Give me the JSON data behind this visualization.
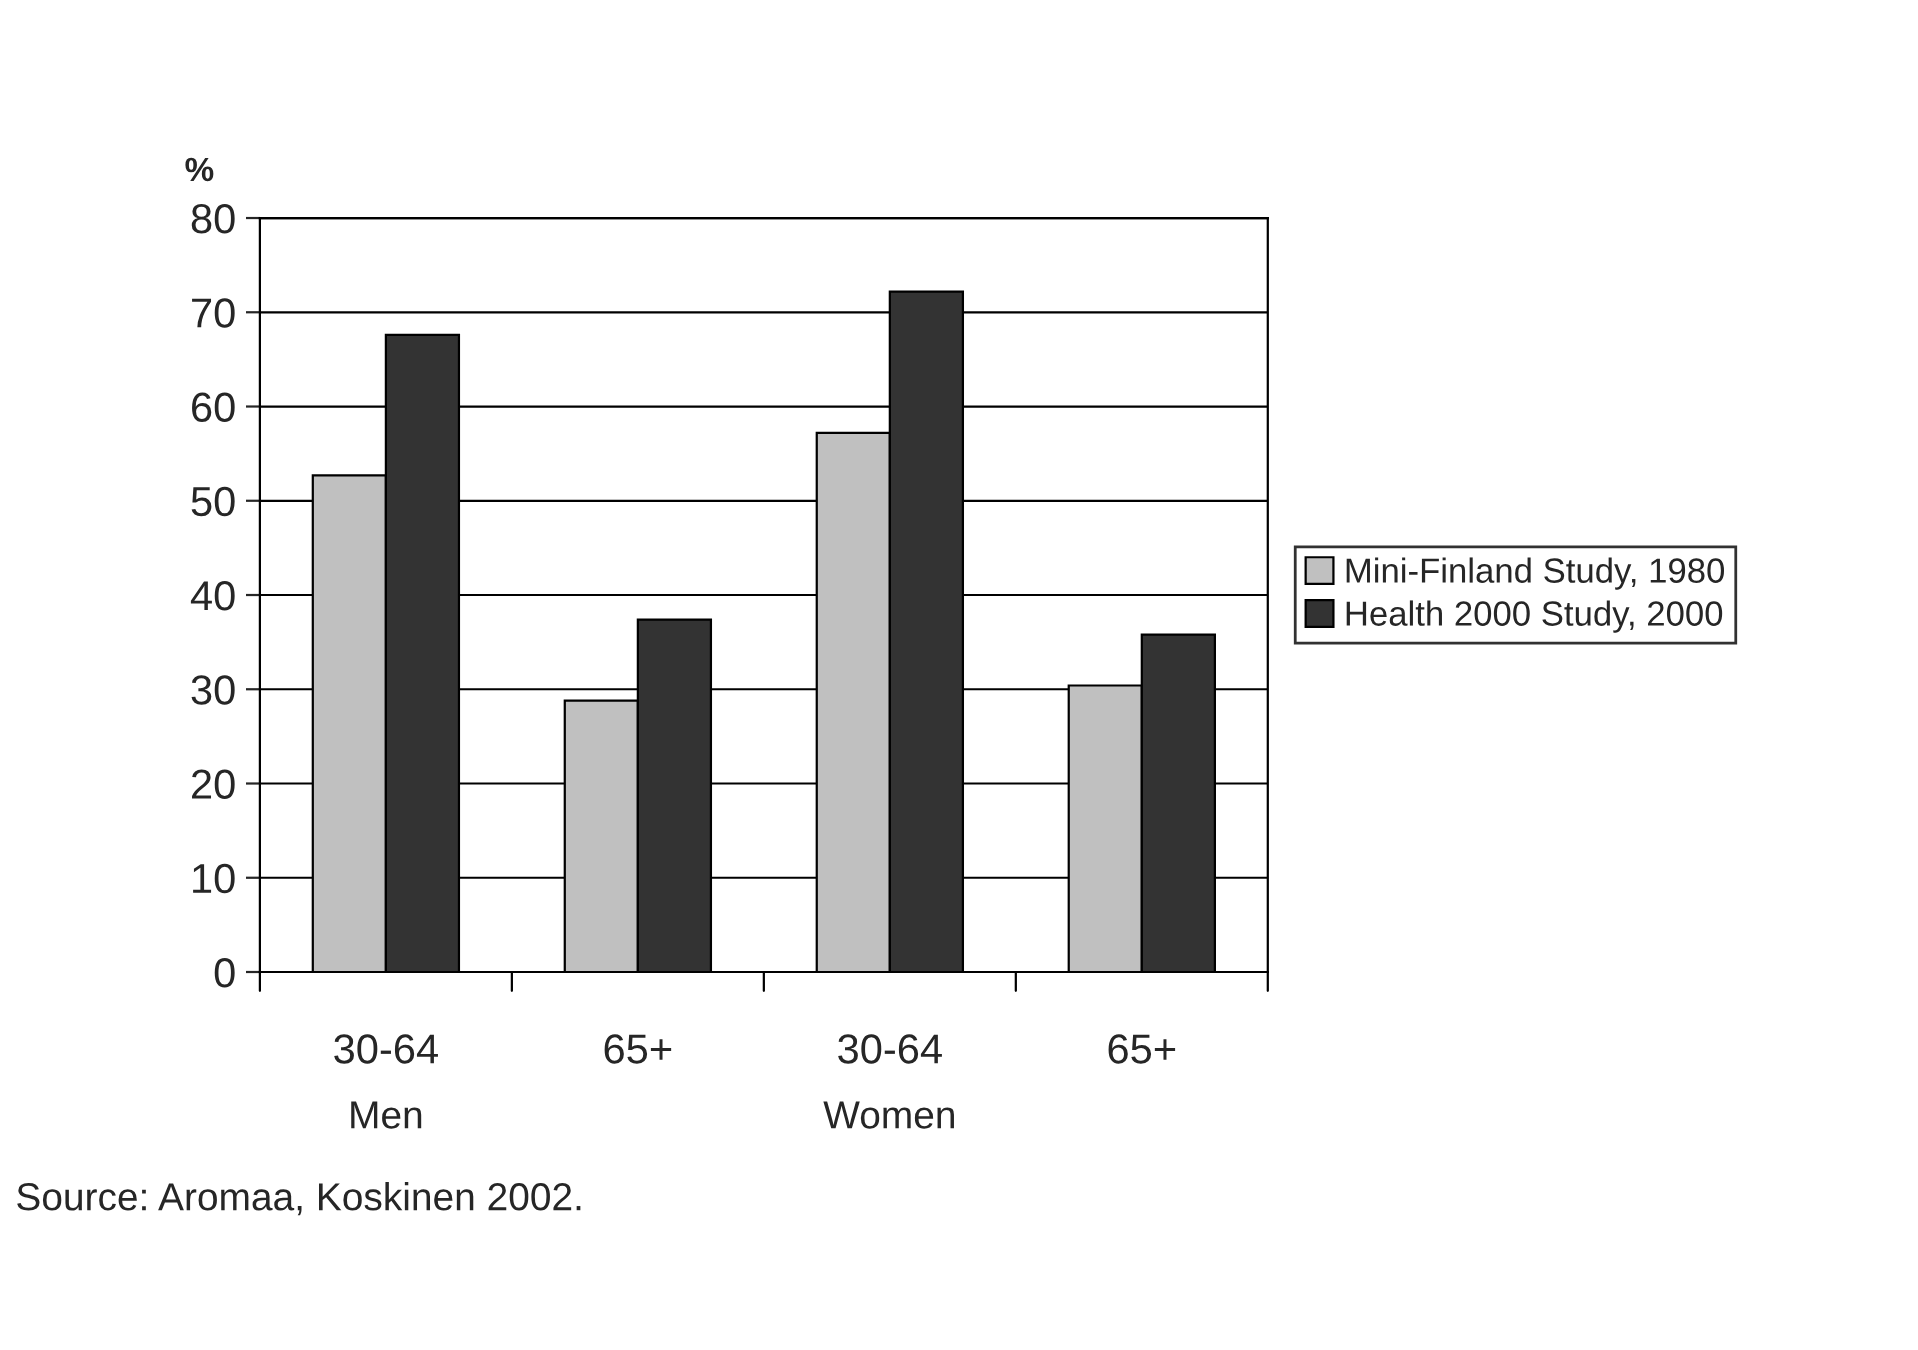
{
  "chart_data": {
    "type": "bar",
    "ylabel": "%",
    "categories": [
      "30-64",
      "65+",
      "30-64",
      "65+"
    ],
    "series": [
      {
        "name": "Mini-Finland Study, 1980",
        "color": "#c0c0c0",
        "values": [
          52.7,
          28.8,
          57.2,
          30.4
        ]
      },
      {
        "name": "Health 2000 Study, 2000",
        "color": "#333333",
        "values": [
          67.6,
          37.4,
          72.2,
          35.8
        ]
      }
    ],
    "ylim": [
      0,
      80
    ],
    "yticks": [
      0,
      10,
      20,
      30,
      40,
      50,
      60,
      70,
      80
    ],
    "grid": "y",
    "legend": "right",
    "annotations": [
      "Men",
      "Women",
      "Source: Aromaa, Koskinen 2002."
    ]
  }
}
